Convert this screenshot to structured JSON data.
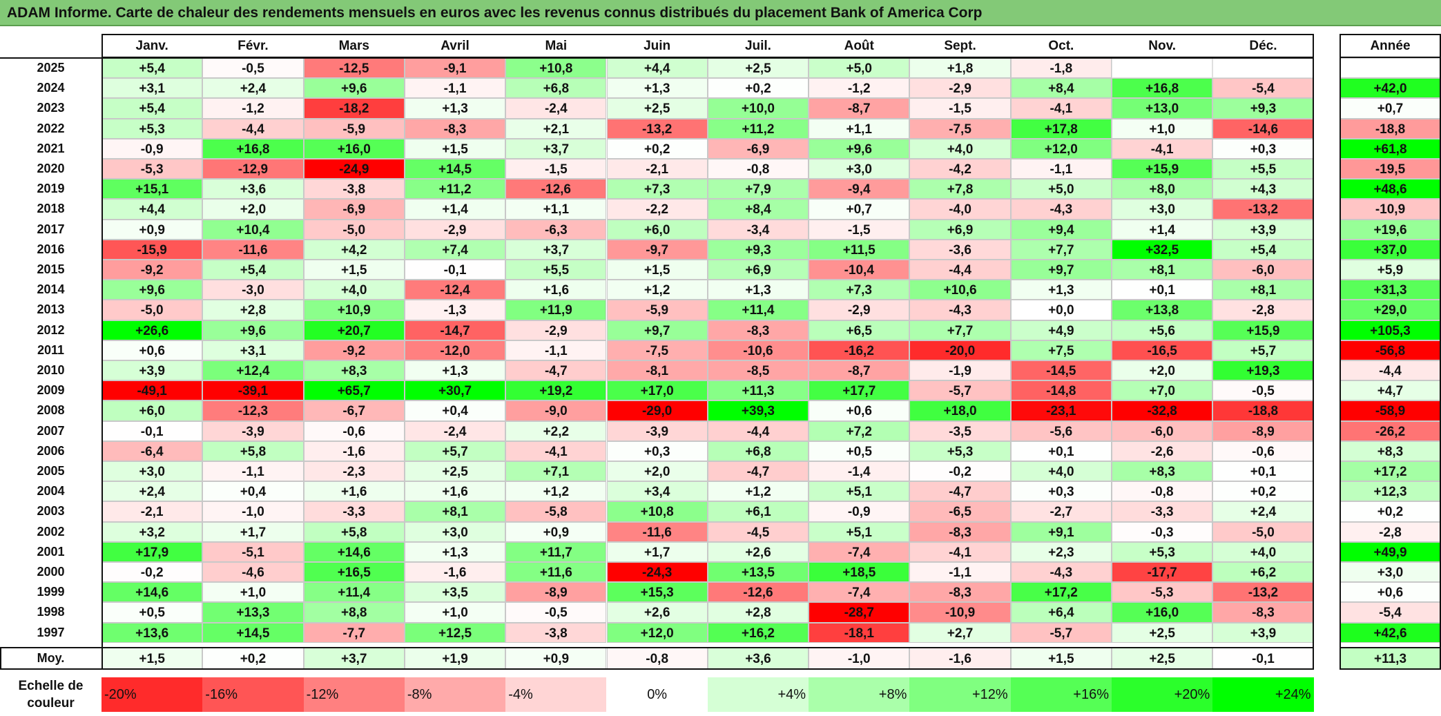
{
  "title": "ADAM Informe. Carte de chaleur des rendements mensuels en euros avec les revenus connus distribués du placement Bank of America Corp",
  "chart_data": {
    "type": "heatmap",
    "title": "ADAM Informe. Carte de chaleur des rendements mensuels en euros avec les revenus connus distribués du placement Bank of America Corp",
    "columns": [
      "Janv.",
      "Févr.",
      "Mars",
      "Avril",
      "Mai",
      "Juin",
      "Juil.",
      "Août",
      "Sept.",
      "Oct.",
      "Nov.",
      "Déc."
    ],
    "year_column_label": "Année",
    "rows": [
      {
        "year": "2025",
        "values": [
          "+5,4",
          "-0,5",
          "-12,5",
          "-9,1",
          "+10,8",
          "+4,4",
          "+2,5",
          "+5,0",
          "+1,8",
          "-1,8",
          "",
          ""
        ],
        "annual": ""
      },
      {
        "year": "2024",
        "values": [
          "+3,1",
          "+2,4",
          "+9,6",
          "-1,1",
          "+6,8",
          "+1,3",
          "+0,2",
          "-1,2",
          "-2,9",
          "+8,4",
          "+16,8",
          "-5,4"
        ],
        "annual": "+42,0"
      },
      {
        "year": "2023",
        "values": [
          "+5,4",
          "-1,2",
          "-18,2",
          "+1,3",
          "-2,4",
          "+2,5",
          "+10,0",
          "-8,7",
          "-1,5",
          "-4,1",
          "+13,0",
          "+9,3"
        ],
        "annual": "+0,7"
      },
      {
        "year": "2022",
        "values": [
          "+5,3",
          "-4,4",
          "-5,9",
          "-8,3",
          "+2,1",
          "-13,2",
          "+11,2",
          "+1,1",
          "-7,5",
          "+17,8",
          "+1,0",
          "-14,6"
        ],
        "annual": "-18,8"
      },
      {
        "year": "2021",
        "values": [
          "-0,9",
          "+16,8",
          "+16,0",
          "+1,5",
          "+3,7",
          "+0,2",
          "-6,9",
          "+9,6",
          "+4,0",
          "+12,0",
          "-4,1",
          "+0,3"
        ],
        "annual": "+61,8"
      },
      {
        "year": "2020",
        "values": [
          "-5,3",
          "-12,9",
          "-24,9",
          "+14,5",
          "-1,5",
          "-2,1",
          "-0,8",
          "+3,0",
          "-4,2",
          "-1,1",
          "+15,9",
          "+5,5"
        ],
        "annual": "-19,5"
      },
      {
        "year": "2019",
        "values": [
          "+15,1",
          "+3,6",
          "-3,8",
          "+11,2",
          "-12,6",
          "+7,3",
          "+7,9",
          "-9,4",
          "+7,8",
          "+5,0",
          "+8,0",
          "+4,3"
        ],
        "annual": "+48,6"
      },
      {
        "year": "2018",
        "values": [
          "+4,4",
          "+2,0",
          "-6,9",
          "+1,4",
          "+1,1",
          "-2,2",
          "+8,4",
          "+0,7",
          "-4,0",
          "-4,3",
          "+3,0",
          "-13,2"
        ],
        "annual": "-10,9"
      },
      {
        "year": "2017",
        "values": [
          "+0,9",
          "+10,4",
          "-5,0",
          "-2,9",
          "-6,3",
          "+6,0",
          "-3,4",
          "-1,5",
          "+6,9",
          "+9,4",
          "+1,4",
          "+3,9"
        ],
        "annual": "+19,6"
      },
      {
        "year": "2016",
        "values": [
          "-15,9",
          "-11,6",
          "+4,2",
          "+7,4",
          "+3,7",
          "-9,7",
          "+9,3",
          "+11,5",
          "-3,6",
          "+7,7",
          "+32,5",
          "+5,4"
        ],
        "annual": "+37,0"
      },
      {
        "year": "2015",
        "values": [
          "-9,2",
          "+5,4",
          "+1,5",
          "-0,1",
          "+5,5",
          "+1,5",
          "+6,9",
          "-10,4",
          "-4,4",
          "+9,7",
          "+8,1",
          "-6,0"
        ],
        "annual": "+5,9"
      },
      {
        "year": "2014",
        "values": [
          "+9,6",
          "-3,0",
          "+4,0",
          "-12,4",
          "+1,6",
          "+1,2",
          "+1,3",
          "+7,3",
          "+10,6",
          "+1,3",
          "+0,1",
          "+8,1"
        ],
        "annual": "+31,3"
      },
      {
        "year": "2013",
        "values": [
          "-5,0",
          "+2,8",
          "+10,9",
          "-1,3",
          "+11,9",
          "-5,9",
          "+11,4",
          "-2,9",
          "-4,3",
          "+0,0",
          "+13,8",
          "-2,8"
        ],
        "annual": "+29,0"
      },
      {
        "year": "2012",
        "values": [
          "+26,6",
          "+9,6",
          "+20,7",
          "-14,7",
          "-2,9",
          "+9,7",
          "-8,3",
          "+6,5",
          "+7,7",
          "+4,9",
          "+5,6",
          "+15,9"
        ],
        "annual": "+105,3"
      },
      {
        "year": "2011",
        "values": [
          "+0,6",
          "+3,1",
          "-9,2",
          "-12,0",
          "-1,1",
          "-7,5",
          "-10,6",
          "-16,2",
          "-20,0",
          "+7,5",
          "-16,5",
          "+5,7"
        ],
        "annual": "-56,8"
      },
      {
        "year": "2010",
        "values": [
          "+3,9",
          "+12,4",
          "+8,3",
          "+1,3",
          "-4,7",
          "-8,1",
          "-8,5",
          "-8,7",
          "-1,9",
          "-14,5",
          "+2,0",
          "+19,3"
        ],
        "annual": "-4,4"
      },
      {
        "year": "2009",
        "values": [
          "-49,1",
          "-39,1",
          "+65,7",
          "+30,7",
          "+19,2",
          "+17,0",
          "+11,3",
          "+17,7",
          "-5,7",
          "-14,8",
          "+7,0",
          "-0,5"
        ],
        "annual": "+4,7"
      },
      {
        "year": "2008",
        "values": [
          "+6,0",
          "-12,3",
          "-6,7",
          "+0,4",
          "-9,0",
          "-29,0",
          "+39,3",
          "+0,6",
          "+18,0",
          "-23,1",
          "-32,8",
          "-18,8"
        ],
        "annual": "-58,9"
      },
      {
        "year": "2007",
        "values": [
          "-0,1",
          "-3,9",
          "-0,6",
          "-2,4",
          "+2,2",
          "-3,9",
          "-4,4",
          "+7,2",
          "-3,5",
          "-5,6",
          "-6,0",
          "-8,9"
        ],
        "annual": "-26,2"
      },
      {
        "year": "2006",
        "values": [
          "-6,4",
          "+5,8",
          "-1,6",
          "+5,7",
          "-4,1",
          "+0,3",
          "+6,8",
          "+0,5",
          "+5,3",
          "+0,1",
          "-2,6",
          "-0,6"
        ],
        "annual": "+8,3"
      },
      {
        "year": "2005",
        "values": [
          "+3,0",
          "-1,1",
          "-2,3",
          "+2,5",
          "+7,1",
          "+2,0",
          "-4,7",
          "-1,4",
          "-0,2",
          "+4,0",
          "+8,3",
          "+0,1"
        ],
        "annual": "+17,2"
      },
      {
        "year": "2004",
        "values": [
          "+2,4",
          "+0,4",
          "+1,6",
          "+1,6",
          "+1,2",
          "+3,4",
          "+1,2",
          "+5,1",
          "-4,7",
          "+0,3",
          "-0,8",
          "+0,2"
        ],
        "annual": "+12,3"
      },
      {
        "year": "2003",
        "values": [
          "-2,1",
          "-1,0",
          "-3,3",
          "+8,1",
          "-5,8",
          "+10,8",
          "+6,1",
          "-0,9",
          "-6,5",
          "-2,7",
          "-3,3",
          "+2,4"
        ],
        "annual": "+0,2"
      },
      {
        "year": "2002",
        "values": [
          "+3,2",
          "+1,7",
          "+5,8",
          "+3,0",
          "+0,9",
          "-11,6",
          "-4,5",
          "+5,1",
          "-8,3",
          "+9,1",
          "-0,3",
          "-5,0"
        ],
        "annual": "-2,8"
      },
      {
        "year": "2001",
        "values": [
          "+17,9",
          "-5,1",
          "+14,6",
          "+1,3",
          "+11,7",
          "+1,7",
          "+2,6",
          "-7,4",
          "-4,1",
          "+2,3",
          "+5,3",
          "+4,0"
        ],
        "annual": "+49,9"
      },
      {
        "year": "2000",
        "values": [
          "-0,2",
          "-4,6",
          "+16,5",
          "-1,6",
          "+11,6",
          "-24,3",
          "+13,5",
          "+18,5",
          "-1,1",
          "-4,3",
          "-17,7",
          "+6,2"
        ],
        "annual": "+3,0"
      },
      {
        "year": "1999",
        "values": [
          "+14,6",
          "+1,0",
          "+11,4",
          "+3,5",
          "-8,9",
          "+15,3",
          "-12,6",
          "-7,4",
          "-8,3",
          "+17,2",
          "-5,3",
          "-13,2"
        ],
        "annual": "+0,6"
      },
      {
        "year": "1998",
        "values": [
          "+0,5",
          "+13,3",
          "+8,8",
          "+1,0",
          "-0,5",
          "+2,6",
          "+2,8",
          "-28,7",
          "-10,9",
          "+6,4",
          "+16,0",
          "-8,3"
        ],
        "annual": "-5,4"
      },
      {
        "year": "1997",
        "values": [
          "+13,6",
          "+14,5",
          "-7,7",
          "+12,5",
          "-3,8",
          "+12,0",
          "+16,2",
          "-18,1",
          "+2,7",
          "-5,7",
          "+2,5",
          "+3,9"
        ],
        "annual": "+42,6"
      }
    ],
    "average": {
      "label": "Moy.",
      "values": [
        "+1,5",
        "+0,2",
        "+3,7",
        "+1,9",
        "+0,9",
        "-0,8",
        "+3,6",
        "-1,0",
        "-1,6",
        "+1,5",
        "+2,5",
        "-0,1"
      ],
      "annual": "+11,3"
    },
    "scale": {
      "label": "Echelle de couleur",
      "stops": [
        "-20%",
        "-16%",
        "-12%",
        "-8%",
        "-4%",
        "0%",
        "+4%",
        "+8%",
        "+12%",
        "+16%",
        "+20%",
        "+24%"
      ],
      "values": [
        -20,
        -16,
        -12,
        -8,
        -4,
        0,
        4,
        8,
        12,
        16,
        20,
        24
      ]
    },
    "colors": {
      "negative": "#ff0000",
      "neutral": "#ffffff",
      "positive": "#00ff00",
      "title_bg": "#83c977"
    }
  }
}
